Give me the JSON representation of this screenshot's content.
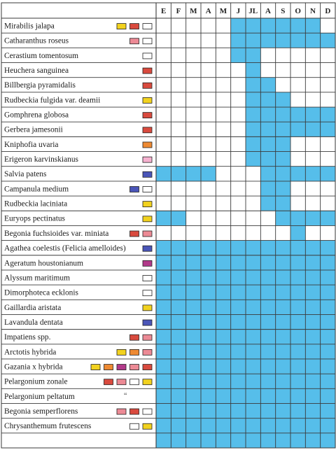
{
  "months": [
    "E",
    "F",
    "M",
    "A",
    "M",
    "J",
    "JL",
    "A",
    "S",
    "O",
    "N",
    "D"
  ],
  "colors": {
    "yellow": "#f2d21f",
    "red": "#d94a3e",
    "pink": "#ec8a95",
    "white": "#ffffff",
    "orange": "#ee8a33",
    "lightpink": "#f6b1cf",
    "blue": "#4a55b8",
    "magenta": "#b23a8a",
    "blooming": "#48b8e8",
    "grid": "#3a3a3a"
  },
  "rows": [
    {
      "name": "Mirabilis jalapa",
      "swatches": [
        "yellow",
        "red",
        "white"
      ],
      "bloom": [
        6,
        7,
        8,
        9,
        10,
        11
      ]
    },
    {
      "name": "Catharanthus roseus",
      "swatches": [
        "pink",
        "white"
      ],
      "bloom": [
        6,
        7,
        8,
        9,
        10,
        11,
        12
      ]
    },
    {
      "name": "Cerastium tomentosum",
      "swatches": [
        "white"
      ],
      "bloom": [
        6,
        7
      ]
    },
    {
      "name": "Heuchera sanguinea",
      "swatches": [
        "red"
      ],
      "bloom": [
        7
      ]
    },
    {
      "name": "Billbergia pyramidalis",
      "swatches": [
        "red"
      ],
      "bloom": [
        7,
        8
      ]
    },
    {
      "name": "Rudbeckia fulgida var. deamii",
      "swatches": [
        "yellow"
      ],
      "bloom": [
        7,
        8,
        9
      ]
    },
    {
      "name": "Gomphrena globosa",
      "swatches": [
        "red"
      ],
      "bloom": [
        7,
        8,
        9,
        10,
        11,
        12
      ]
    },
    {
      "name": "Gerbera jamesonii",
      "swatches": [
        "red"
      ],
      "bloom": [
        7,
        8,
        9,
        10,
        11,
        12
      ]
    },
    {
      "name": "Kniphofia uvaria",
      "swatches": [
        "orange"
      ],
      "bloom": [
        7,
        8,
        9
      ]
    },
    {
      "name": "Erigeron karvinskianus",
      "swatches": [
        "lightpink"
      ],
      "bloom": [
        7,
        8,
        9
      ]
    },
    {
      "name": "Salvia patens",
      "swatches": [
        "blue"
      ],
      "bloom": [
        1,
        2,
        3,
        4,
        8,
        9,
        10,
        11,
        12
      ]
    },
    {
      "name": "Campanula medium",
      "swatches": [
        "blue",
        "white"
      ],
      "bloom": [
        8,
        9
      ]
    },
    {
      "name": "Rudbeckia laciniata",
      "swatches": [
        "yellow"
      ],
      "bloom": [
        8,
        9
      ]
    },
    {
      "name": "Euryops pectinatus",
      "swatches": [
        "yellow"
      ],
      "bloom": [
        1,
        2,
        9,
        10,
        11,
        12
      ]
    },
    {
      "name": "Begonia fuchsioides var. miniata",
      "swatches": [
        "red",
        "pink"
      ],
      "bloom": [
        10
      ]
    },
    {
      "name": "Agathea coelestis (Felicia amelloides)",
      "swatches": [
        "blue"
      ],
      "bloom": [
        1,
        2,
        3,
        4,
        5,
        6,
        7,
        8,
        9,
        10,
        11,
        12
      ]
    },
    {
      "name": "Ageratum houstonianum",
      "swatches": [
        "magenta"
      ],
      "bloom": [
        1,
        2,
        3,
        4,
        5,
        6,
        7,
        8,
        9,
        10,
        11,
        12
      ]
    },
    {
      "name": "Alyssum maritimum",
      "swatches": [
        "white"
      ],
      "bloom": [
        1,
        2,
        3,
        4,
        5,
        6,
        7,
        8,
        9,
        10,
        11,
        12
      ]
    },
    {
      "name": "Dimorphoteca ecklonis",
      "swatches": [
        "white"
      ],
      "bloom": [
        1,
        2,
        3,
        4,
        5,
        6,
        7,
        8,
        9,
        10,
        11,
        12
      ]
    },
    {
      "name": "Gaillardia aristata",
      "swatches": [
        "yellow"
      ],
      "bloom": [
        1,
        2,
        3,
        4,
        5,
        6,
        7,
        8,
        9,
        10,
        11,
        12
      ]
    },
    {
      "name": "Lavandula dentata",
      "swatches": [
        "blue"
      ],
      "bloom": [
        1,
        2,
        3,
        4,
        5,
        6,
        7,
        8,
        9,
        10,
        11,
        12
      ]
    },
    {
      "name": "Impatiens spp.",
      "swatches": [
        "red",
        "pink"
      ],
      "bloom": [
        1,
        2,
        3,
        4,
        5,
        6,
        7,
        8,
        9,
        10,
        11,
        12
      ]
    },
    {
      "name": "Arctotis hybrida",
      "swatches": [
        "yellow",
        "orange",
        "pink"
      ],
      "bloom": [
        1,
        2,
        3,
        4,
        5,
        6,
        7,
        8,
        9,
        10,
        11,
        12
      ]
    },
    {
      "name": "Gazania x hybrida",
      "swatches": [
        "yellow",
        "orange",
        "magenta",
        "pink",
        "red"
      ],
      "bloom": [
        1,
        2,
        3,
        4,
        5,
        6,
        7,
        8,
        9,
        10,
        11,
        12
      ]
    },
    {
      "name": "Pelargonium zonale",
      "swatches": [
        "red",
        "pink",
        "white",
        "yellow"
      ],
      "bloom": [
        1,
        2,
        3,
        4,
        5,
        6,
        7,
        8,
        9,
        10,
        11,
        12
      ]
    },
    {
      "name": "Pelargonium peltatum",
      "swatches": [],
      "mark": "“",
      "bloom": [
        1,
        2,
        3,
        4,
        5,
        6,
        7,
        8,
        9,
        10,
        11,
        12
      ]
    },
    {
      "name": "Begonia semperflorens",
      "swatches": [
        "pink",
        "red",
        "white"
      ],
      "bloom": [
        1,
        2,
        3,
        4,
        5,
        6,
        7,
        8,
        9,
        10,
        11,
        12
      ]
    },
    {
      "name": "Chrysanthemum frutescens",
      "swatches": [
        "white",
        "yellow"
      ],
      "bloom": [
        1,
        2,
        3,
        4,
        5,
        6,
        7,
        8,
        9,
        10,
        11,
        12
      ]
    },
    {
      "name": "",
      "swatches": [],
      "bloom": [
        1,
        2,
        3,
        4,
        5,
        6,
        7,
        8,
        9,
        10,
        11,
        12
      ]
    }
  ]
}
